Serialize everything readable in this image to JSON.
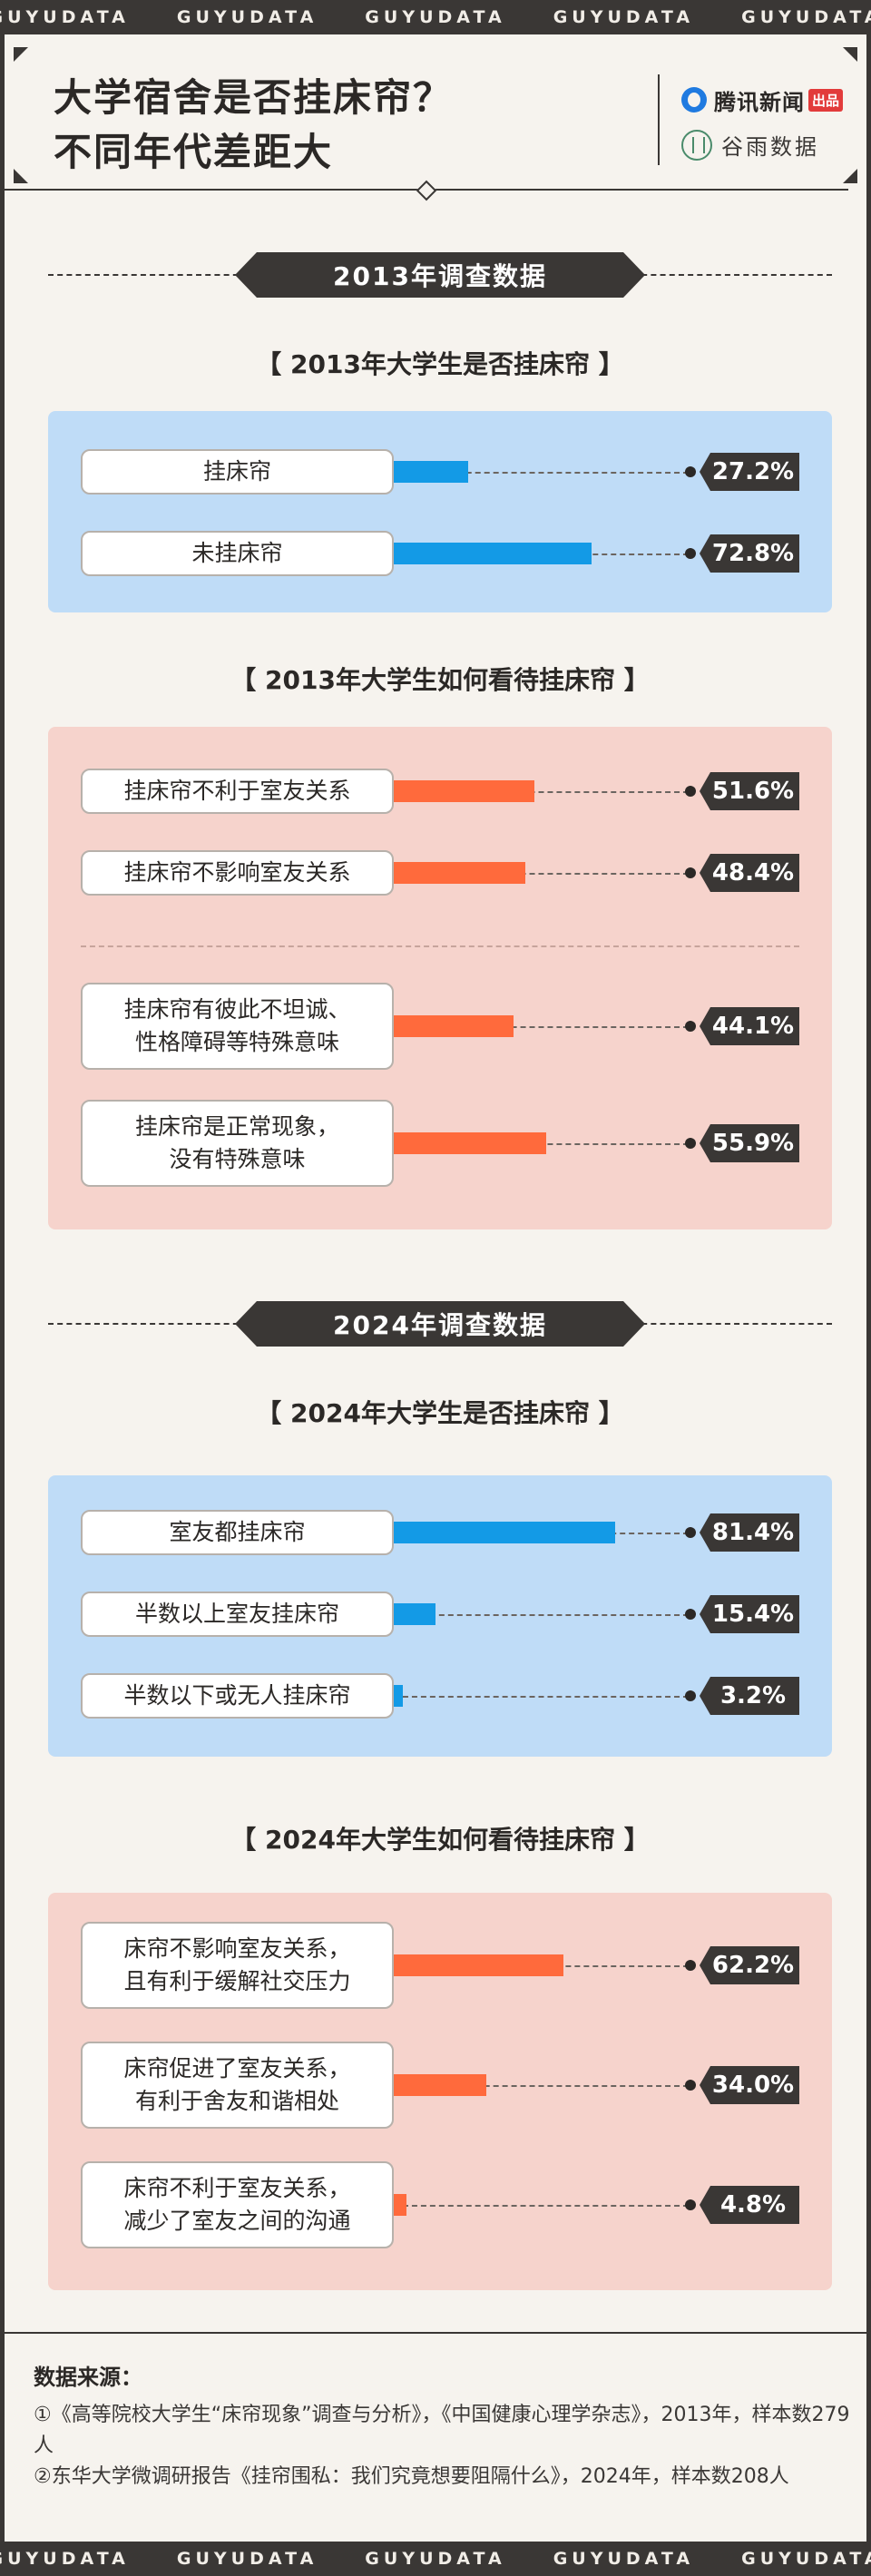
{
  "ribbon": {
    "text": "GUYUDATA",
    "count": 5
  },
  "header": {
    "title_line1": "大学宿舍是否挂床帘？",
    "title_line2": "不同年代差距大",
    "logo_tencent": "腾讯新闻",
    "logo_tencent_badge": "出品",
    "logo_guyu": "谷雨数据"
  },
  "sections": {
    "s2013": "2013年调查数据",
    "s2024": "2024年调查数据"
  },
  "chart_data": [
    {
      "type": "bar",
      "title": "【 2013年大学生是否挂床帘 】",
      "categories": [
        "挂床帘",
        "未挂床帘"
      ],
      "values": [
        27.2,
        72.8
      ],
      "value_labels": [
        "27.2%",
        "72.8%"
      ],
      "color": "#139ae6"
    },
    {
      "type": "bar",
      "title": "【 2013年大学生如何看待挂床帘 】",
      "categories": [
        "挂床帘不利于室友关系",
        "挂床帘不影响室友关系",
        "挂床帘有彼此不坦诚、\n性格障碍等特殊意味",
        "挂床帘是正常现象，\n没有特殊意味"
      ],
      "values": [
        51.6,
        48.4,
        44.1,
        55.9
      ],
      "value_labels": [
        "51.6%",
        "48.4%",
        "44.1%",
        "55.9%"
      ],
      "color": "#ff6a3c"
    },
    {
      "type": "bar",
      "title": "【 2024年大学生是否挂床帘 】",
      "categories": [
        "室友都挂床帘",
        "半数以上室友挂床帘",
        "半数以下或无人挂床帘"
      ],
      "values": [
        81.4,
        15.4,
        3.2
      ],
      "value_labels": [
        "81.4%",
        "15.4%",
        "3.2%"
      ],
      "color": "#139ae6"
    },
    {
      "type": "bar",
      "title": "【 2024年大学生如何看待挂床帘 】",
      "categories": [
        "床帘不影响室友关系，\n且有利于缓解社交压力",
        "床帘促进了室友关系，\n有利于舍友和谐相处",
        "床帘不利于室友关系，\n减少了室友之间的沟通"
      ],
      "values": [
        62.2,
        34.0,
        4.8
      ],
      "value_labels": [
        "62.2%",
        "34.0%",
        "4.8%"
      ],
      "color": "#ff6a3c"
    }
  ],
  "sources": {
    "title": "数据来源：",
    "items": [
      "①《高等院校大学生“床帘现象”调查与分析》，《中国健康心理学杂志》，2013年，样本数279人",
      "②东华大学微调研报告《挂帘围私：我们究竟想要阻隔什么》，2024年，样本数208人"
    ]
  }
}
